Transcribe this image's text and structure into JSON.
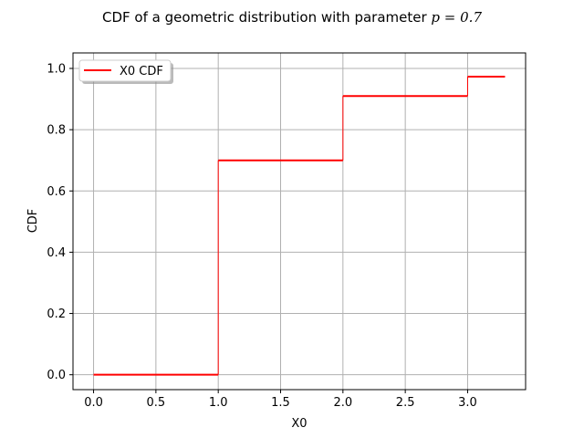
{
  "chart_data": {
    "type": "line",
    "title_prefix": "CDF of a geometric distribution with parameter ",
    "title_math": "p = 0.7",
    "xlabel": "X0",
    "ylabel": "CDF",
    "xlim": [
      -0.165,
      3.465
    ],
    "ylim": [
      -0.0486,
      1.0506
    ],
    "xticks": [
      0.0,
      0.5,
      1.0,
      1.5,
      2.0,
      2.5,
      3.0
    ],
    "xtick_labels": [
      "0.0",
      "0.5",
      "1.0",
      "1.5",
      "2.0",
      "2.5",
      "3.0"
    ],
    "yticks": [
      0.0,
      0.2,
      0.4,
      0.6,
      0.8,
      1.0
    ],
    "ytick_labels": [
      "0.0",
      "0.2",
      "0.4",
      "0.6",
      "0.8",
      "1.0"
    ],
    "grid": true,
    "legend_position": "upper-left",
    "series": [
      {
        "name": "X0 CDF",
        "color": "#ff0000",
        "step": true,
        "x": [
          0.0,
          1.0,
          1.0,
          2.0,
          2.0,
          3.0,
          3.0,
          3.3
        ],
        "y": [
          0.0,
          0.0,
          0.7,
          0.7,
          0.91,
          0.91,
          0.973,
          0.973
        ]
      }
    ]
  }
}
